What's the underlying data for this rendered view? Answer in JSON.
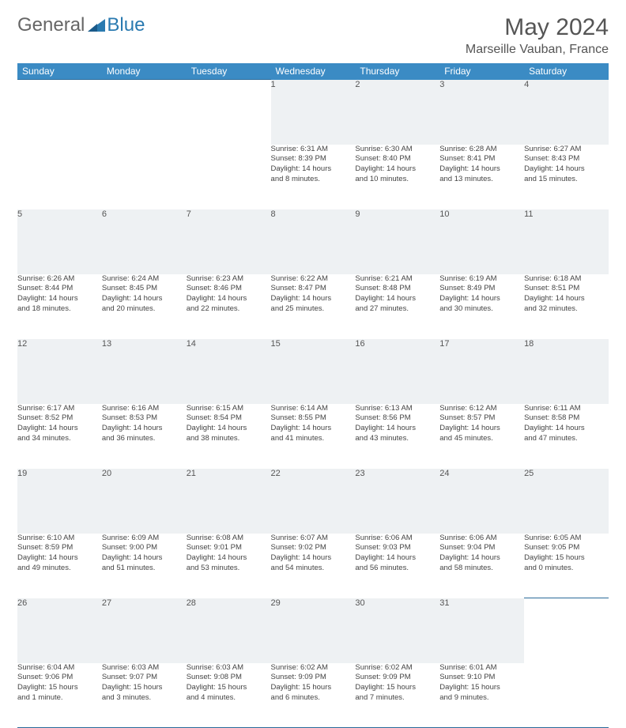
{
  "logo": {
    "text1": "General",
    "text2": "Blue"
  },
  "title": "May 2024",
  "location": "Marseille Vauban, France",
  "day_headers": [
    "Sunday",
    "Monday",
    "Tuesday",
    "Wednesday",
    "Thursday",
    "Friday",
    "Saturday"
  ],
  "colors": {
    "header_bg": "#3b8bc4",
    "header_text": "#ffffff",
    "daynum_bg": "#eef1f3",
    "border": "#2a6a9a",
    "text": "#444444",
    "logo_blue": "#2a7ab0"
  },
  "weeks": [
    [
      {
        "n": "",
        "lines": []
      },
      {
        "n": "",
        "lines": []
      },
      {
        "n": "",
        "lines": []
      },
      {
        "n": "1",
        "lines": [
          "Sunrise: 6:31 AM",
          "Sunset: 8:39 PM",
          "Daylight: 14 hours",
          "and 8 minutes."
        ]
      },
      {
        "n": "2",
        "lines": [
          "Sunrise: 6:30 AM",
          "Sunset: 8:40 PM",
          "Daylight: 14 hours",
          "and 10 minutes."
        ]
      },
      {
        "n": "3",
        "lines": [
          "Sunrise: 6:28 AM",
          "Sunset: 8:41 PM",
          "Daylight: 14 hours",
          "and 13 minutes."
        ]
      },
      {
        "n": "4",
        "lines": [
          "Sunrise: 6:27 AM",
          "Sunset: 8:43 PM",
          "Daylight: 14 hours",
          "and 15 minutes."
        ]
      }
    ],
    [
      {
        "n": "5",
        "lines": [
          "Sunrise: 6:26 AM",
          "Sunset: 8:44 PM",
          "Daylight: 14 hours",
          "and 18 minutes."
        ]
      },
      {
        "n": "6",
        "lines": [
          "Sunrise: 6:24 AM",
          "Sunset: 8:45 PM",
          "Daylight: 14 hours",
          "and 20 minutes."
        ]
      },
      {
        "n": "7",
        "lines": [
          "Sunrise: 6:23 AM",
          "Sunset: 8:46 PM",
          "Daylight: 14 hours",
          "and 22 minutes."
        ]
      },
      {
        "n": "8",
        "lines": [
          "Sunrise: 6:22 AM",
          "Sunset: 8:47 PM",
          "Daylight: 14 hours",
          "and 25 minutes."
        ]
      },
      {
        "n": "9",
        "lines": [
          "Sunrise: 6:21 AM",
          "Sunset: 8:48 PM",
          "Daylight: 14 hours",
          "and 27 minutes."
        ]
      },
      {
        "n": "10",
        "lines": [
          "Sunrise: 6:19 AM",
          "Sunset: 8:49 PM",
          "Daylight: 14 hours",
          "and 30 minutes."
        ]
      },
      {
        "n": "11",
        "lines": [
          "Sunrise: 6:18 AM",
          "Sunset: 8:51 PM",
          "Daylight: 14 hours",
          "and 32 minutes."
        ]
      }
    ],
    [
      {
        "n": "12",
        "lines": [
          "Sunrise: 6:17 AM",
          "Sunset: 8:52 PM",
          "Daylight: 14 hours",
          "and 34 minutes."
        ]
      },
      {
        "n": "13",
        "lines": [
          "Sunrise: 6:16 AM",
          "Sunset: 8:53 PM",
          "Daylight: 14 hours",
          "and 36 minutes."
        ]
      },
      {
        "n": "14",
        "lines": [
          "Sunrise: 6:15 AM",
          "Sunset: 8:54 PM",
          "Daylight: 14 hours",
          "and 38 minutes."
        ]
      },
      {
        "n": "15",
        "lines": [
          "Sunrise: 6:14 AM",
          "Sunset: 8:55 PM",
          "Daylight: 14 hours",
          "and 41 minutes."
        ]
      },
      {
        "n": "16",
        "lines": [
          "Sunrise: 6:13 AM",
          "Sunset: 8:56 PM",
          "Daylight: 14 hours",
          "and 43 minutes."
        ]
      },
      {
        "n": "17",
        "lines": [
          "Sunrise: 6:12 AM",
          "Sunset: 8:57 PM",
          "Daylight: 14 hours",
          "and 45 minutes."
        ]
      },
      {
        "n": "18",
        "lines": [
          "Sunrise: 6:11 AM",
          "Sunset: 8:58 PM",
          "Daylight: 14 hours",
          "and 47 minutes."
        ]
      }
    ],
    [
      {
        "n": "19",
        "lines": [
          "Sunrise: 6:10 AM",
          "Sunset: 8:59 PM",
          "Daylight: 14 hours",
          "and 49 minutes."
        ]
      },
      {
        "n": "20",
        "lines": [
          "Sunrise: 6:09 AM",
          "Sunset: 9:00 PM",
          "Daylight: 14 hours",
          "and 51 minutes."
        ]
      },
      {
        "n": "21",
        "lines": [
          "Sunrise: 6:08 AM",
          "Sunset: 9:01 PM",
          "Daylight: 14 hours",
          "and 53 minutes."
        ]
      },
      {
        "n": "22",
        "lines": [
          "Sunrise: 6:07 AM",
          "Sunset: 9:02 PM",
          "Daylight: 14 hours",
          "and 54 minutes."
        ]
      },
      {
        "n": "23",
        "lines": [
          "Sunrise: 6:06 AM",
          "Sunset: 9:03 PM",
          "Daylight: 14 hours",
          "and 56 minutes."
        ]
      },
      {
        "n": "24",
        "lines": [
          "Sunrise: 6:06 AM",
          "Sunset: 9:04 PM",
          "Daylight: 14 hours",
          "and 58 minutes."
        ]
      },
      {
        "n": "25",
        "lines": [
          "Sunrise: 6:05 AM",
          "Sunset: 9:05 PM",
          "Daylight: 15 hours",
          "and 0 minutes."
        ]
      }
    ],
    [
      {
        "n": "26",
        "lines": [
          "Sunrise: 6:04 AM",
          "Sunset: 9:06 PM",
          "Daylight: 15 hours",
          "and 1 minute."
        ]
      },
      {
        "n": "27",
        "lines": [
          "Sunrise: 6:03 AM",
          "Sunset: 9:07 PM",
          "Daylight: 15 hours",
          "and 3 minutes."
        ]
      },
      {
        "n": "28",
        "lines": [
          "Sunrise: 6:03 AM",
          "Sunset: 9:08 PM",
          "Daylight: 15 hours",
          "and 4 minutes."
        ]
      },
      {
        "n": "29",
        "lines": [
          "Sunrise: 6:02 AM",
          "Sunset: 9:09 PM",
          "Daylight: 15 hours",
          "and 6 minutes."
        ]
      },
      {
        "n": "30",
        "lines": [
          "Sunrise: 6:02 AM",
          "Sunset: 9:09 PM",
          "Daylight: 15 hours",
          "and 7 minutes."
        ]
      },
      {
        "n": "31",
        "lines": [
          "Sunrise: 6:01 AM",
          "Sunset: 9:10 PM",
          "Daylight: 15 hours",
          "and 9 minutes."
        ]
      },
      {
        "n": "",
        "lines": []
      }
    ]
  ]
}
